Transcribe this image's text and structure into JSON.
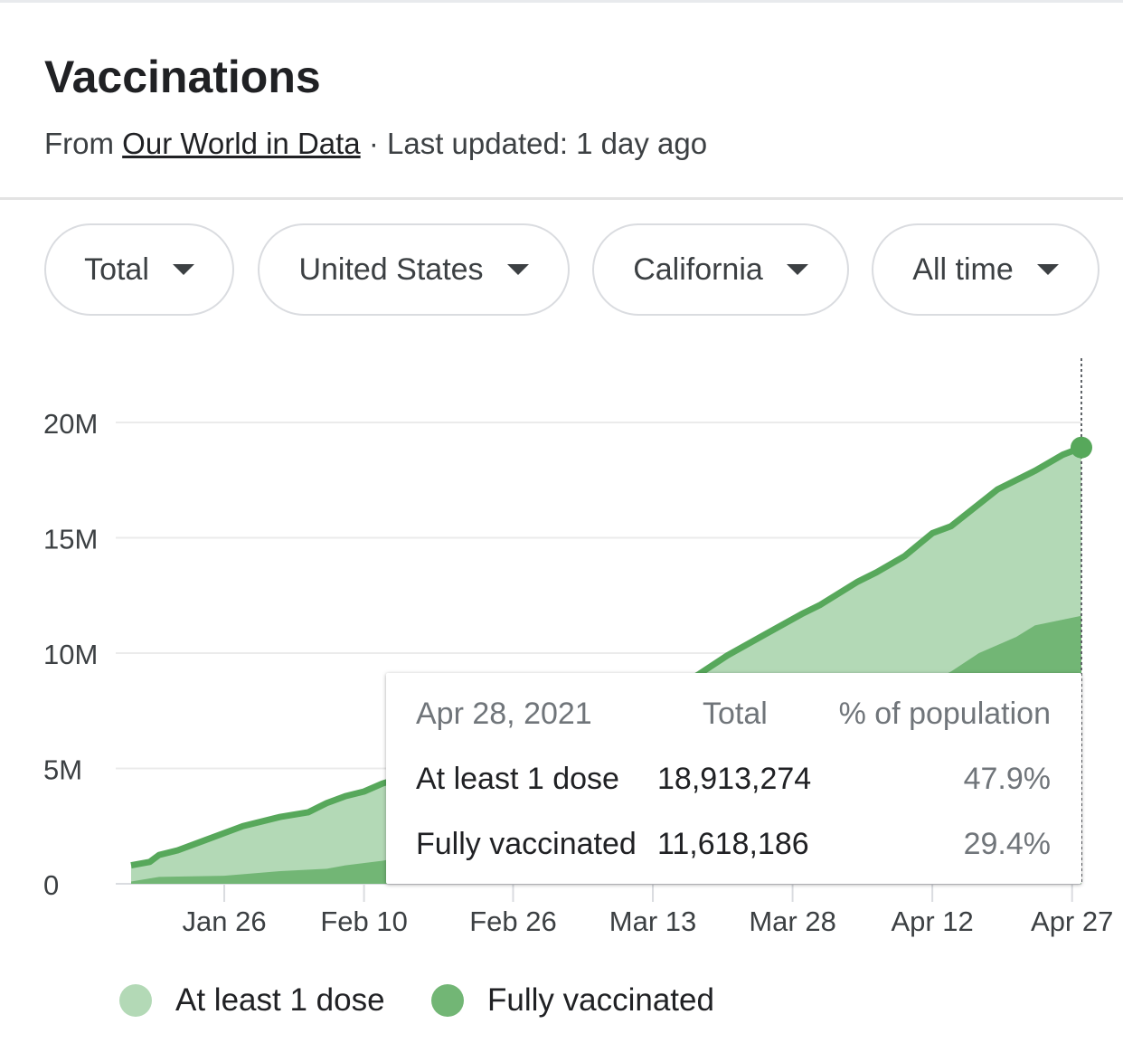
{
  "header": {
    "title": "Vaccinations",
    "source_prefix": "From",
    "source_link": "Our World in Data",
    "updated": "· Last updated: 1 day ago"
  },
  "filters": [
    {
      "label": "Total"
    },
    {
      "label": "United States"
    },
    {
      "label": "California"
    },
    {
      "label": "All time"
    }
  ],
  "colors": {
    "dose1": "#b3d9b6",
    "full": "#72b675",
    "line": "#57a85b"
  },
  "chart_data": {
    "type": "area",
    "title": "Vaccinations",
    "ylim": [
      0,
      20000000
    ],
    "y_ticks": [
      {
        "v": 0,
        "label": "0"
      },
      {
        "v": 5000000,
        "label": "5M"
      },
      {
        "v": 10000000,
        "label": "10M"
      },
      {
        "v": 15000000,
        "label": "15M"
      },
      {
        "v": 20000000,
        "label": "20M"
      }
    ],
    "x_ticks": [
      {
        "d": "2021-01-26",
        "label": "Jan 26"
      },
      {
        "d": "2021-02-10",
        "label": "Feb 10"
      },
      {
        "d": "2021-02-26",
        "label": "Feb 26"
      },
      {
        "d": "2021-03-13",
        "label": "Mar 13"
      },
      {
        "d": "2021-03-28",
        "label": "Mar 28"
      },
      {
        "d": "2021-04-12",
        "label": "Apr 12"
      },
      {
        "d": "2021-04-27",
        "label": "Apr 27"
      }
    ],
    "xlim": [
      "2021-01-16",
      "2021-04-28"
    ],
    "series": [
      {
        "name": "At least 1 dose",
        "points": [
          [
            "2021-01-16",
            800000
          ],
          [
            "2021-01-18",
            950000
          ],
          [
            "2021-01-19",
            1250000
          ],
          [
            "2021-01-21",
            1450000
          ],
          [
            "2021-01-24",
            1900000
          ],
          [
            "2021-01-28",
            2500000
          ],
          [
            "2021-02-01",
            2900000
          ],
          [
            "2021-02-04",
            3100000
          ],
          [
            "2021-02-06",
            3500000
          ],
          [
            "2021-02-08",
            3800000
          ],
          [
            "2021-02-10",
            4000000
          ],
          [
            "2021-02-12",
            4350000
          ],
          [
            "2021-02-26",
            6000000
          ],
          [
            "2021-03-13",
            7900000
          ],
          [
            "2021-03-18",
            9100000
          ],
          [
            "2021-03-21",
            9900000
          ],
          [
            "2021-03-25",
            10800000
          ],
          [
            "2021-03-29",
            11700000
          ],
          [
            "2021-03-31",
            12100000
          ],
          [
            "2021-04-04",
            13100000
          ],
          [
            "2021-04-06",
            13500000
          ],
          [
            "2021-04-09",
            14200000
          ],
          [
            "2021-04-12",
            15200000
          ],
          [
            "2021-04-14",
            15500000
          ],
          [
            "2021-04-19",
            17100000
          ],
          [
            "2021-04-23",
            17900000
          ],
          [
            "2021-04-26",
            18600000
          ],
          [
            "2021-04-28",
            18913274
          ]
        ]
      },
      {
        "name": "Fully vaccinated",
        "points": [
          [
            "2021-01-16",
            100000
          ],
          [
            "2021-01-19",
            300000
          ],
          [
            "2021-01-26",
            350000
          ],
          [
            "2021-02-01",
            550000
          ],
          [
            "2021-02-06",
            650000
          ],
          [
            "2021-02-08",
            800000
          ],
          [
            "2021-02-12",
            1000000
          ],
          [
            "2021-02-26",
            2000000
          ],
          [
            "2021-03-13",
            4000000
          ],
          [
            "2021-03-28",
            6500000
          ],
          [
            "2021-04-12",
            8800000
          ],
          [
            "2021-04-14",
            9200000
          ],
          [
            "2021-04-17",
            10000000
          ],
          [
            "2021-04-21",
            10700000
          ],
          [
            "2021-04-23",
            11200000
          ],
          [
            "2021-04-28",
            11618186
          ]
        ]
      }
    ]
  },
  "tooltip": {
    "date": "Apr 28, 2021",
    "col_total": "Total",
    "col_pct": "% of population",
    "rows": [
      {
        "label": "At least 1 dose",
        "total": "18,913,274",
        "pct": "47.9%"
      },
      {
        "label": "Fully vaccinated",
        "total": "11,618,186",
        "pct": "29.4%"
      }
    ]
  },
  "legend": [
    {
      "label": "At least 1 dose"
    },
    {
      "label": "Fully vaccinated"
    }
  ]
}
